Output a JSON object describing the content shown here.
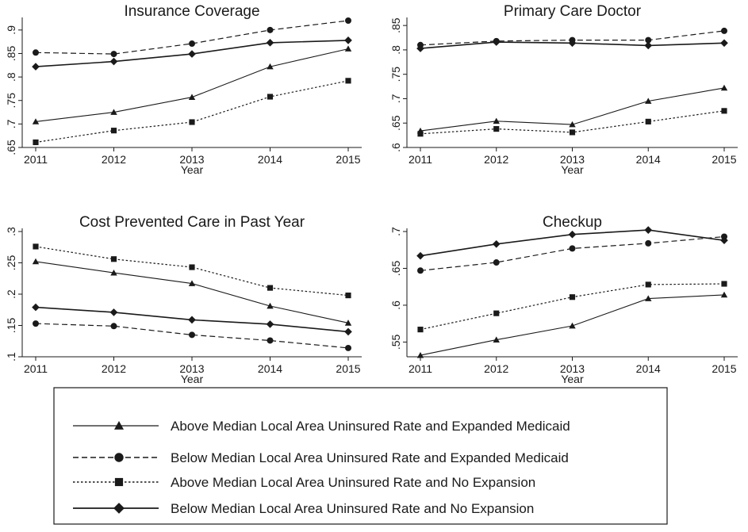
{
  "chart_data": [
    {
      "type": "line",
      "title": "Insurance Coverage",
      "xlabel": "Year",
      "ylabel": "",
      "x": [
        2011,
        2012,
        2013,
        2014,
        2015
      ],
      "ylim": [
        0.65,
        0.92
      ],
      "yticks": [
        0.65,
        0.7,
        0.75,
        0.8,
        0.85,
        0.9
      ],
      "ytick_labels": [
        ".65",
        ".7",
        ".75",
        ".8",
        ".85",
        ".9"
      ],
      "series": [
        {
          "values": [
            0.705,
            0.725,
            0.757,
            0.822,
            0.86
          ]
        },
        {
          "values": [
            0.852,
            0.849,
            0.871,
            0.9,
            0.92
          ]
        },
        {
          "values": [
            0.661,
            0.686,
            0.704,
            0.758,
            0.792
          ]
        },
        {
          "values": [
            0.822,
            0.833,
            0.849,
            0.873,
            0.878
          ]
        }
      ]
    },
    {
      "type": "line",
      "title": "Primary Care Doctor",
      "xlabel": "Year",
      "ylabel": "",
      "x": [
        2011,
        2012,
        2013,
        2014,
        2015
      ],
      "ylim": [
        0.6,
        0.86
      ],
      "yticks": [
        0.6,
        0.65,
        0.7,
        0.75,
        0.8,
        0.85
      ],
      "ytick_labels": [
        ".6",
        ".65",
        ".7",
        ".75",
        ".8",
        ".85"
      ],
      "series": [
        {
          "values": [
            0.634,
            0.654,
            0.647,
            0.695,
            0.722
          ]
        },
        {
          "values": [
            0.81,
            0.818,
            0.82,
            0.82,
            0.839
          ]
        },
        {
          "values": [
            0.628,
            0.638,
            0.631,
            0.653,
            0.675
          ]
        },
        {
          "values": [
            0.803,
            0.816,
            0.814,
            0.809,
            0.814
          ]
        }
      ]
    },
    {
      "type": "line",
      "title": "Cost Prevented Care in Past Year",
      "xlabel": "Year",
      "ylabel": "",
      "x": [
        2011,
        2012,
        2013,
        2014,
        2015
      ],
      "ylim": [
        0.1,
        0.3
      ],
      "yticks": [
        0.1,
        0.15,
        0.2,
        0.25,
        0.3
      ],
      "ytick_labels": [
        ".1",
        ".15",
        ".2",
        ".25",
        ".3"
      ],
      "series": [
        {
          "values": [
            0.252,
            0.234,
            0.217,
            0.181,
            0.154
          ]
        },
        {
          "values": [
            0.153,
            0.149,
            0.135,
            0.126,
            0.114
          ]
        },
        {
          "values": [
            0.276,
            0.256,
            0.243,
            0.21,
            0.198
          ]
        },
        {
          "values": [
            0.179,
            0.171,
            0.159,
            0.152,
            0.14
          ]
        }
      ]
    },
    {
      "type": "line",
      "title": "Checkup",
      "xlabel": "Year",
      "ylabel": "",
      "x": [
        2011,
        2012,
        2013,
        2014,
        2015
      ],
      "ylim": [
        0.53,
        0.7
      ],
      "yticks": [
        0.55,
        0.6,
        0.65,
        0.7
      ],
      "ytick_labels": [
        ".55",
        ".6",
        ".65",
        ".7"
      ],
      "series": [
        {
          "values": [
            0.532,
            0.553,
            0.572,
            0.609,
            0.614
          ]
        },
        {
          "values": [
            0.647,
            0.658,
            0.677,
            0.684,
            0.693
          ]
        },
        {
          "values": [
            0.567,
            0.589,
            0.611,
            0.628,
            0.629
          ]
        },
        {
          "values": [
            0.667,
            0.683,
            0.696,
            0.702,
            0.688
          ]
        }
      ]
    }
  ],
  "legend": [
    {
      "label": "Above Median Local Area Uninsured Rate and Expanded Medicaid",
      "style": "thin-solid",
      "marker": "triangle",
      "color": "#1a1a1a"
    },
    {
      "label": "Below Median Local Area Uninsured Rate and Expanded Medicaid",
      "style": "dashed",
      "marker": "circle",
      "color": "#1a1a1a"
    },
    {
      "label": "Above Median Local Area Uninsured Rate and No Expansion",
      "style": "dotted",
      "marker": "square",
      "color": "#1a1a1a"
    },
    {
      "label": "Below Median Local Area Uninsured Rate and No Expansion",
      "style": "solid",
      "marker": "diamond",
      "color": "#1a1a1a"
    }
  ]
}
